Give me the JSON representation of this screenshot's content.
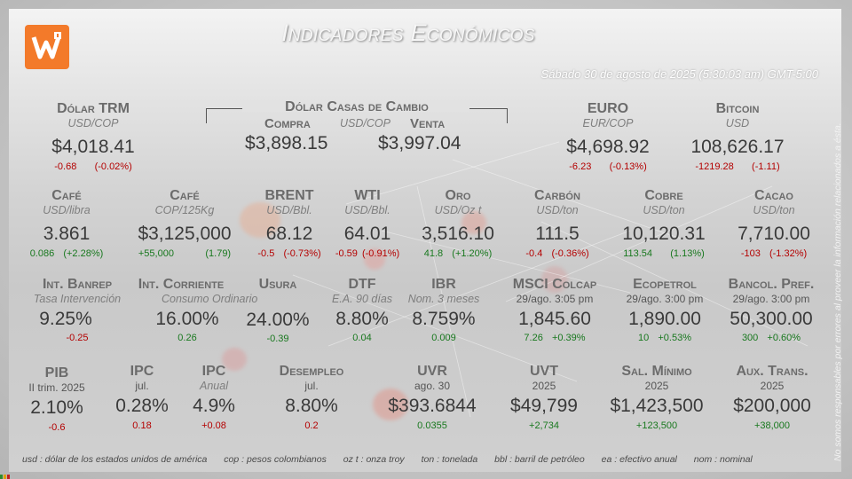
{
  "header": {
    "title": "Indicadores Económicos",
    "datetime": "Sábado 30 de agosto de 2025 (5:30:03 am) GMT-5:00",
    "side_note": "No somos responsables por errores al proveer la información relacionados a ésta."
  },
  "row1": {
    "dolar_trm": {
      "name": "Dólar TRM",
      "unit": "USD/COP",
      "value": "$4,018.41",
      "chg_abs": "-0.68",
      "chg_pct": "(-0.02%)"
    },
    "casas_cambio": {
      "name": "Dólar Casas de Cambio",
      "unit": "USD/COP",
      "compra_label": "Compra",
      "venta_label": "Venta",
      "compra_value": "$3,898.15",
      "venta_value": "$3,997.04"
    },
    "euro": {
      "name": "EURO",
      "unit": "EUR/COP",
      "value": "$4,698.92",
      "chg_abs": "-6.23",
      "chg_pct": "(-0.13%)"
    },
    "bitcoin": {
      "name": "Bitcoin",
      "unit": "USD",
      "value": "108,626.17",
      "chg_abs": "-1219.28",
      "chg_pct": "(-1.11)"
    }
  },
  "row2": [
    {
      "name": "Café",
      "unit": "USD/libra",
      "value": "3.861",
      "chg_abs": "0.086",
      "chg_pct": "(+2.28%)",
      "dir": "pos"
    },
    {
      "name": "Café",
      "unit": "COP/125Kg",
      "value": "$3,125,000",
      "chg_abs": "+55,000",
      "chg_pct": "(1.79)",
      "dir": "pos"
    },
    {
      "name": "BRENT",
      "unit": "USD/Bbl.",
      "value": "68.12",
      "chg_abs": "-0.5",
      "chg_pct": "(-0.73%)",
      "dir": "neg"
    },
    {
      "name": "WTI",
      "unit": "USD/Bbl.",
      "value": "64.01",
      "chg_abs": "-0.59",
      "chg_pct": "(-0.91%)",
      "dir": "neg"
    },
    {
      "name": "Oro",
      "unit": "USD/Oz t",
      "value": "3,516.10",
      "chg_abs": "41.8",
      "chg_pct": "(+1.20%)",
      "dir": "pos"
    },
    {
      "name": "Carbón",
      "unit": "USD/ton",
      "value": "111.5",
      "chg_abs": "-0.4",
      "chg_pct": "(-0.36%)",
      "dir": "neg"
    },
    {
      "name": "Cobre",
      "unit": "USD/ton",
      "value": "10,120.31",
      "chg_abs": "113.54",
      "chg_pct": "(1.13%)",
      "dir": "pos"
    },
    {
      "name": "Cacao",
      "unit": "USD/ton",
      "value": "7,710.00",
      "chg_abs": "-103",
      "chg_pct": "(-1.32%)",
      "dir": "neg"
    }
  ],
  "row3": [
    {
      "name": "Int. Banrep",
      "unit": "Tasa Intervención",
      "value": "9.25%",
      "chg": "-0.25",
      "dir": "neg"
    },
    {
      "name": "Int. Corriente",
      "unit": "Consumo Ordinario",
      "value": "16.00%",
      "chg": "0.26",
      "dir": "pos"
    },
    {
      "name": "Usura",
      "unit": "",
      "value": "24.00%",
      "chg": "-0.39",
      "dir": "pos"
    },
    {
      "name": "DTF",
      "unit": "E.A. 90 días",
      "value": "8.80%",
      "chg": "0.04",
      "dir": "pos"
    },
    {
      "name": "IBR",
      "unit": "Nom. 3 meses",
      "value": "8.759%",
      "chg": "0.009",
      "dir": "pos"
    },
    {
      "name": "MSCI Colcap",
      "unit": "29/ago. 3:05 pm",
      "value": "1,845.60",
      "chg_abs": "7.26",
      "chg_pct": "+0.39%",
      "dir": "pos"
    },
    {
      "name": "Ecopetrol",
      "unit": "29/ago. 3:00 pm",
      "value": "1,890.00",
      "chg_abs": "10",
      "chg_pct": "+0.53%",
      "dir": "pos"
    },
    {
      "name": "Bancol. Pref.",
      "unit": "29/ago. 3:00 pm",
      "value": "50,300.00",
      "chg_abs": "300",
      "chg_pct": "+0.60%",
      "dir": "pos"
    }
  ],
  "row4": [
    {
      "name": "PIB",
      "unit": "II trim. 2025",
      "value": "2.10%",
      "chg": "-0.6",
      "dir": "neg"
    },
    {
      "name": "IPC",
      "unit": "jul.",
      "value": "0.28%",
      "chg": "0.18",
      "dir": "neg"
    },
    {
      "name": "IPC",
      "unit": "Anual",
      "value": "4.9%",
      "chg": "+0.08",
      "dir": "neg"
    },
    {
      "name": "Desempleo",
      "unit": "jul.",
      "value": "8.80%",
      "chg": "0.2",
      "dir": "neg"
    },
    {
      "name": "UVR",
      "unit": "ago. 30",
      "value": "$393.6844",
      "chg": "0.0355",
      "dir": "pos"
    },
    {
      "name": "UVT",
      "unit": "2025",
      "value": "$49,799",
      "chg": "+2,734",
      "dir": "pos"
    },
    {
      "name": "Sal. Mínimo",
      "unit": "2025",
      "value": "$1,423,500",
      "chg": "+123,500",
      "dir": "pos"
    },
    {
      "name": "Aux. Trans.",
      "unit": "2025",
      "value": "$200,000",
      "chg": "+38,000",
      "dir": "pos"
    }
  ],
  "footer": [
    "usd : dólar de los estados unidos de américa",
    "cop : pesos colombianos",
    "oz t : onza troy",
    "ton : tonelada",
    "bbl : barril de petróleo",
    "ea : efectivo anual",
    "nom : nominal"
  ],
  "colors": {
    "brand": "#f37a2a",
    "negative": "#b40000",
    "positive": "#18781e"
  }
}
